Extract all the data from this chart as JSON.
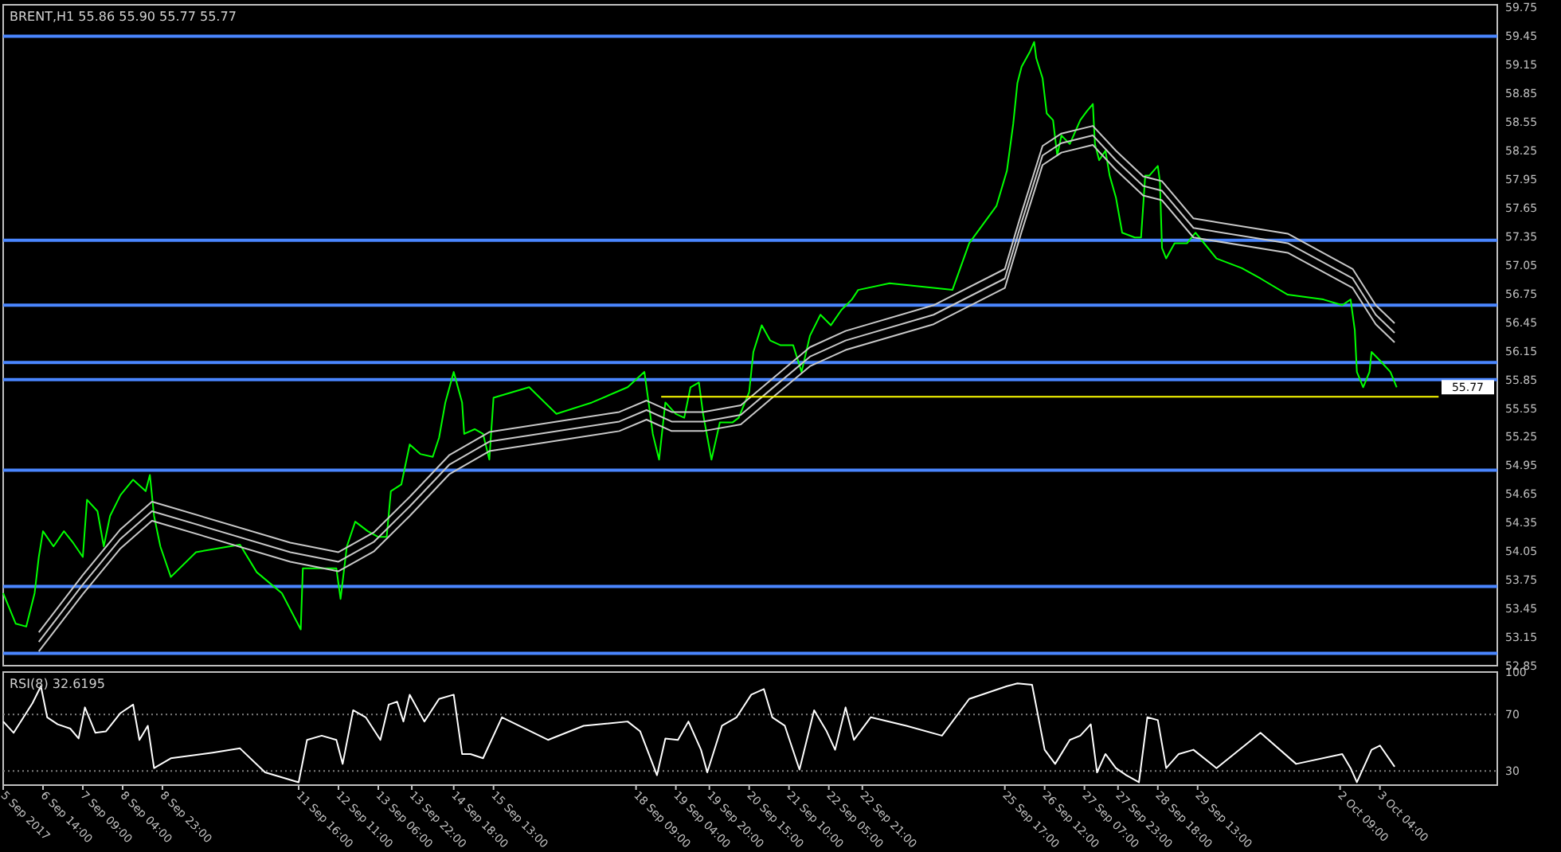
{
  "chart_data": [
    {
      "type": "line",
      "title": "BRENT,H1 55.86 55.90 55.77 55.77",
      "xlim": [
        "2017-09-05T19:00",
        "2017-10-05T12:00"
      ],
      "ylim": [
        52.85,
        59.78
      ],
      "yticks": [
        52.85,
        53.15,
        53.45,
        53.75,
        54.05,
        54.35,
        54.65,
        54.95,
        55.25,
        55.55,
        55.85,
        56.15,
        56.45,
        56.75,
        57.05,
        57.35,
        57.65,
        57.95,
        58.25,
        58.55,
        58.85,
        59.15,
        59.45,
        59.75
      ],
      "tick_labels": "y",
      "grid": false,
      "ref_lines": [
        {
          "axis": "y",
          "value": 59.45,
          "color": "#4a86ff"
        },
        {
          "axis": "y",
          "value": 57.31,
          "color": "#4a86ff"
        },
        {
          "axis": "y",
          "value": 56.63,
          "color": "#4a86ff"
        },
        {
          "axis": "y",
          "value": 56.03,
          "color": "#4a86ff"
        },
        {
          "axis": "y",
          "value": 55.85,
          "color": "#4a86ff"
        },
        {
          "axis": "y",
          "value": 54.9,
          "color": "#4a86ff"
        },
        {
          "axis": "y",
          "value": 53.68,
          "color": "#4a86ff"
        },
        {
          "axis": "y",
          "value": 52.98,
          "color": "#4a86ff"
        }
      ],
      "annotations": [
        {
          "text": "55.77",
          "y": 55.77
        }
      ],
      "series": [
        {
          "color": "#00ff00",
          "x": [
            "2017-09-05T19:00",
            "2017-09-06T01:00",
            "2017-09-06T06:00",
            "2017-09-06T10:00",
            "2017-09-06T12:00",
            "2017-09-06T14:00",
            "2017-09-06T19:00",
            "2017-09-07T00:00",
            "2017-09-07T04:00",
            "2017-09-07T09:00",
            "2017-09-07T11:00",
            "2017-09-07T16:00",
            "2017-09-07T19:00",
            "2017-09-07T22:00",
            "2017-09-08T03:00",
            "2017-09-08T09:00",
            "2017-09-08T15:00",
            "2017-09-08T17:00",
            "2017-09-08T19:00",
            "2017-09-08T22:00",
            "2017-09-09T03:00",
            "2017-09-09T15:00",
            "2017-09-10T12:00",
            "2017-09-10T20:00",
            "2017-09-11T08:00",
            "2017-09-11T17:00",
            "2017-09-11T18:00",
            "2017-09-11T23:00",
            "2017-09-12T05:00",
            "2017-09-12T10:00",
            "2017-09-12T12:00",
            "2017-09-12T15:00",
            "2017-09-12T19:00",
            "2017-09-13T01:00",
            "2017-09-13T06:00",
            "2017-09-13T10:00",
            "2017-09-13T12:00",
            "2017-09-13T17:00",
            "2017-09-13T19:00",
            "2017-09-13T21:00",
            "2017-09-14T02:00",
            "2017-09-14T08:00",
            "2017-09-14T11:00",
            "2017-09-14T14:00",
            "2017-09-14T18:00",
            "2017-09-14T22:00",
            "2017-09-14T23:00",
            "2017-09-15T04:00",
            "2017-09-15T08:00",
            "2017-09-15T11:00",
            "2017-09-15T13:00",
            "2017-09-16T06:00",
            "2017-09-16T19:00",
            "2017-09-17T12:00",
            "2017-09-18T05:00",
            "2017-09-18T13:00",
            "2017-09-18T15:00",
            "2017-09-18T17:00",
            "2017-09-18T20:00",
            "2017-09-18T23:00",
            "2017-09-19T04:00",
            "2017-09-19T08:00",
            "2017-09-19T11:00",
            "2017-09-19T15:00",
            "2017-09-19T17:00",
            "2017-09-19T21:00",
            "2017-09-20T01:00",
            "2017-09-20T07:00",
            "2017-09-20T10:00",
            "2017-09-20T15:00",
            "2017-09-20T17:00",
            "2017-09-20T21:00",
            "2017-09-21T01:00",
            "2017-09-21T06:00",
            "2017-09-21T12:00",
            "2017-09-21T16:00",
            "2017-09-21T20:00",
            "2017-09-22T01:00",
            "2017-09-22T06:00",
            "2017-09-22T11:00",
            "2017-09-22T16:00",
            "2017-09-22T19:00",
            "2017-09-23T10:00",
            "2017-09-24T16:00",
            "2017-09-25T00:00",
            "2017-09-25T13:00",
            "2017-09-25T18:00",
            "2017-09-25T21:00",
            "2017-09-25T23:00",
            "2017-09-26T01:00",
            "2017-09-26T05:00",
            "2017-09-26T07:00",
            "2017-09-26T08:00",
            "2017-09-26T11:00",
            "2017-09-26T13:00",
            "2017-09-26T16:00",
            "2017-09-26T18:00",
            "2017-09-26T20:00",
            "2017-09-27T00:00",
            "2017-09-27T05:00",
            "2017-09-27T08:00",
            "2017-09-27T11:00",
            "2017-09-27T12:00",
            "2017-09-27T14:00",
            "2017-09-27T17:00",
            "2017-09-27T19:00",
            "2017-09-27T22:00",
            "2017-09-28T01:00",
            "2017-09-28T07:00",
            "2017-09-28T10:00",
            "2017-09-28T12:00",
            "2017-09-28T14:00",
            "2017-09-28T18:00",
            "2017-09-28T19:00",
            "2017-09-28T20:00",
            "2017-09-28T22:00",
            "2017-09-29T02:00",
            "2017-09-29T08:00",
            "2017-09-29T12:00",
            "2017-09-29T22:00",
            "2017-09-30T10:00",
            "2017-09-30T19:00",
            "2017-10-01T08:00",
            "2017-10-02T01:00",
            "2017-10-02T10:00",
            "2017-10-02T14:00",
            "2017-10-02T16:00",
            "2017-10-02T17:00",
            "2017-10-02T20:00",
            "2017-10-02T23:00",
            "2017-10-03T00:00",
            "2017-10-03T04:00",
            "2017-10-03T09:00",
            "2017-10-03T12:00"
          ],
          "values": [
            53.61,
            53.29,
            53.26,
            53.61,
            53.99,
            54.26,
            54.1,
            54.26,
            54.15,
            53.99,
            54.59,
            54.47,
            54.1,
            54.42,
            54.64,
            54.8,
            54.68,
            54.85,
            54.42,
            54.1,
            53.78,
            54.04,
            54.12,
            53.83,
            53.61,
            53.23,
            53.87,
            53.87,
            53.87,
            53.87,
            53.55,
            54.1,
            54.36,
            54.26,
            54.2,
            54.2,
            54.68,
            54.75,
            54.96,
            55.17,
            55.07,
            55.04,
            55.24,
            55.61,
            55.93,
            55.61,
            55.28,
            55.33,
            55.28,
            55.01,
            55.66,
            55.77,
            55.49,
            55.61,
            55.77,
            55.93,
            55.61,
            55.28,
            55.01,
            55.61,
            55.49,
            55.45,
            55.77,
            55.82,
            55.49,
            55.01,
            55.4,
            55.4,
            55.45,
            55.72,
            56.14,
            56.42,
            56.26,
            56.21,
            56.21,
            55.93,
            56.31,
            56.53,
            56.42,
            56.58,
            56.69,
            56.79,
            56.86,
            56.79,
            57.28,
            57.67,
            58.04,
            58.53,
            58.96,
            59.13,
            59.29,
            59.39,
            59.22,
            59.01,
            58.64,
            58.57,
            58.2,
            58.41,
            58.32,
            58.57,
            58.66,
            58.74,
            58.32,
            58.15,
            58.25,
            57.99,
            57.76,
            57.39,
            57.34,
            57.34,
            57.99,
            57.99,
            58.09,
            57.93,
            57.23,
            57.12,
            57.28,
            57.28,
            57.39,
            57.12,
            57.02,
            56.91,
            56.74,
            56.69,
            56.63,
            56.69,
            56.37,
            55.93,
            55.77,
            55.93,
            56.14,
            56.05,
            55.93,
            55.77
          ]
        },
        {
          "color": "#c8c8c8",
          "x": [
            "2017-09-06T12:00",
            "2017-09-07T09:00",
            "2017-09-08T03:00",
            "2017-09-08T18:00",
            "2017-09-11T12:00",
            "2017-09-12T11:00",
            "2017-09-13T04:00",
            "2017-09-13T21:00",
            "2017-09-14T16:00",
            "2017-09-15T11:00",
            "2017-09-18T01:00",
            "2017-09-18T14:00",
            "2017-09-19T02:00",
            "2017-09-19T17:00",
            "2017-09-20T11:00",
            "2017-09-21T01:00",
            "2017-09-21T20:00",
            "2017-09-22T13:00",
            "2017-09-24T07:00",
            "2017-09-25T17:00",
            "2017-09-26T01:00",
            "2017-09-26T11:00",
            "2017-09-26T20:00",
            "2017-09-27T11:00",
            "2017-09-27T22:00",
            "2017-09-28T11:00",
            "2017-09-28T20:00",
            "2017-09-29T11:00",
            "2017-10-01T08:00",
            "2017-10-02T15:00",
            "2017-10-03T02:00",
            "2017-10-03T11:00"
          ],
          "values": [
            53.2,
            53.8,
            54.28,
            54.57,
            54.14,
            54.04,
            54.25,
            54.62,
            55.06,
            55.3,
            55.51,
            55.63,
            55.51,
            55.51,
            55.58,
            55.84,
            56.19,
            56.36,
            56.63,
            57.01,
            57.6,
            58.3,
            58.43,
            58.51,
            58.25,
            57.98,
            57.93,
            57.54,
            57.38,
            57.01,
            56.63,
            56.44
          ]
        },
        {
          "color": "#c8c8c8",
          "x": [
            "2017-09-06T12:00",
            "2017-09-07T09:00",
            "2017-09-08T03:00",
            "2017-09-08T18:00",
            "2017-09-11T12:00",
            "2017-09-12T11:00",
            "2017-09-13T04:00",
            "2017-09-13T21:00",
            "2017-09-14T16:00",
            "2017-09-15T11:00",
            "2017-09-18T01:00",
            "2017-09-18T14:00",
            "2017-09-19T02:00",
            "2017-09-19T17:00",
            "2017-09-20T11:00",
            "2017-09-21T01:00",
            "2017-09-21T20:00",
            "2017-09-22T13:00",
            "2017-09-24T07:00",
            "2017-09-25T17:00",
            "2017-09-26T01:00",
            "2017-09-26T11:00",
            "2017-09-26T20:00",
            "2017-09-27T11:00",
            "2017-09-27T22:00",
            "2017-09-28T11:00",
            "2017-09-28T20:00",
            "2017-09-29T11:00",
            "2017-10-01T08:00",
            "2017-10-02T15:00",
            "2017-10-03T02:00",
            "2017-10-03T11:00"
          ],
          "values": [
            53.1,
            53.7,
            54.18,
            54.47,
            54.04,
            53.94,
            54.15,
            54.52,
            54.96,
            55.2,
            55.41,
            55.53,
            55.41,
            55.41,
            55.48,
            55.74,
            56.09,
            56.26,
            56.53,
            56.91,
            57.5,
            58.2,
            58.33,
            58.41,
            58.15,
            57.88,
            57.83,
            57.44,
            57.28,
            56.91,
            56.53,
            56.34
          ]
        },
        {
          "color": "#c8c8c8",
          "x": [
            "2017-09-06T12:00",
            "2017-09-07T09:00",
            "2017-09-08T03:00",
            "2017-09-08T18:00",
            "2017-09-11T12:00",
            "2017-09-12T11:00",
            "2017-09-13T04:00",
            "2017-09-13T21:00",
            "2017-09-14T16:00",
            "2017-09-15T11:00",
            "2017-09-18T01:00",
            "2017-09-18T14:00",
            "2017-09-19T02:00",
            "2017-09-19T17:00",
            "2017-09-20T11:00",
            "2017-09-21T01:00",
            "2017-09-21T20:00",
            "2017-09-22T13:00",
            "2017-09-24T07:00",
            "2017-09-25T17:00",
            "2017-09-26T01:00",
            "2017-09-26T11:00",
            "2017-09-26T20:00",
            "2017-09-27T11:00",
            "2017-09-27T22:00",
            "2017-09-28T11:00",
            "2017-09-28T20:00",
            "2017-09-29T11:00",
            "2017-10-01T08:00",
            "2017-10-02T15:00",
            "2017-10-03T02:00",
            "2017-10-03T11:00"
          ],
          "values": [
            53.0,
            53.6,
            54.08,
            54.37,
            53.94,
            53.84,
            54.05,
            54.42,
            54.86,
            55.1,
            55.31,
            55.43,
            55.31,
            55.31,
            55.38,
            55.64,
            55.99,
            56.16,
            56.43,
            56.81,
            57.4,
            58.1,
            58.23,
            58.31,
            58.05,
            57.78,
            57.73,
            57.34,
            57.18,
            56.81,
            56.43,
            56.24
          ]
        },
        {
          "color": "#ffff00",
          "x": [
            "2017-09-18T21:00",
            "2017-10-04T08:00"
          ],
          "values": [
            55.67,
            55.67
          ]
        }
      ]
    },
    {
      "type": "line",
      "title": "RSI(8) 32.6195",
      "xlim": [
        "2017-09-05T19:00",
        "2017-10-05T12:00"
      ],
      "xticks": [
        {
          "value": "2017-09-05T19:00",
          "label": "5 Sep 2017"
        },
        {
          "value": "2017-09-06T14:00",
          "label": "6 Sep 14:00"
        },
        {
          "value": "2017-09-07T09:00",
          "label": "7 Sep 09:00"
        },
        {
          "value": "2017-09-08T04:00",
          "label": "8 Sep 04:00"
        },
        {
          "value": "2017-09-08T23:00",
          "label": "8 Sep 23:00"
        },
        {
          "value": "2017-09-11T16:00",
          "label": "11 Sep 16:00"
        },
        {
          "value": "2017-09-12T11:00",
          "label": "12 Sep 11:00"
        },
        {
          "value": "2017-09-13T06:00",
          "label": "13 Sep 06:00"
        },
        {
          "value": "2017-09-13T22:00",
          "label": "13 Sep 22:00"
        },
        {
          "value": "2017-09-14T18:00",
          "label": "14 Sep 18:00"
        },
        {
          "value": "2017-09-15T13:00",
          "label": "15 Sep 13:00"
        },
        {
          "value": "2017-09-18T09:00",
          "label": "18 Sep 09:00"
        },
        {
          "value": "2017-09-19T04:00",
          "label": "19 Sep 04:00"
        },
        {
          "value": "2017-09-19T20:00",
          "label": "19 Sep 20:00"
        },
        {
          "value": "2017-09-20T15:00",
          "label": "20 Sep 15:00"
        },
        {
          "value": "2017-09-21T10:00",
          "label": "21 Sep 10:00"
        },
        {
          "value": "2017-09-22T05:00",
          "label": "22 Sep 05:00"
        },
        {
          "value": "2017-09-22T21:00",
          "label": "22 Sep 21:00"
        },
        {
          "value": "2017-09-25T17:00",
          "label": "25 Sep 17:00"
        },
        {
          "value": "2017-09-26T12:00",
          "label": "26 Sep 12:00"
        },
        {
          "value": "2017-09-27T07:00",
          "label": "27 Sep 07:00"
        },
        {
          "value": "2017-09-27T23:00",
          "label": "27 Sep 23:00"
        },
        {
          "value": "2017-09-28T18:00",
          "label": "28 Sep 18:00"
        },
        {
          "value": "2017-09-29T13:00",
          "label": "29 Sep 13:00"
        },
        {
          "value": "2017-10-02T09:00",
          "label": "2 Oct 09:00"
        },
        {
          "value": "2017-10-03T04:00",
          "label": "3 Oct 04:00"
        }
      ],
      "ylim": [
        20,
        100
      ],
      "yticks": [
        30,
        70,
        100
      ],
      "ref_lines": [
        {
          "axis": "y",
          "value": 70,
          "color": "#808080",
          "line_style": "dotted"
        },
        {
          "axis": "y",
          "value": 30,
          "color": "#808080",
          "line_style": "dotted"
        }
      ],
      "series": [
        {
          "color": "#ffffff",
          "x": [
            "2017-09-05T19:00",
            "2017-09-06T00:00",
            "2017-09-06T09:00",
            "2017-09-06T13:00",
            "2017-09-06T16:00",
            "2017-09-06T21:00",
            "2017-09-07T03:00",
            "2017-09-07T07:00",
            "2017-09-07T10:00",
            "2017-09-07T15:00",
            "2017-09-07T20:00",
            "2017-09-08T03:00",
            "2017-09-08T09:00",
            "2017-09-08T12:00",
            "2017-09-08T16:00",
            "2017-09-08T19:00",
            "2017-09-09T03:00",
            "2017-09-09T23:00",
            "2017-09-10T12:00",
            "2017-09-11T00:00",
            "2017-09-11T16:00",
            "2017-09-11T20:00",
            "2017-09-12T03:00",
            "2017-09-12T10:00",
            "2017-09-12T13:00",
            "2017-09-12T18:00",
            "2017-09-13T00:00",
            "2017-09-13T07:00",
            "2017-09-13T11:00",
            "2017-09-13T15:00",
            "2017-09-13T18:00",
            "2017-09-13T21:00",
            "2017-09-14T04:00",
            "2017-09-14T11:00",
            "2017-09-14T18:00",
            "2017-09-14T22:00",
            "2017-09-15T02:00",
            "2017-09-15T08:00",
            "2017-09-15T17:00",
            "2017-09-16T15:00",
            "2017-09-17T08:00",
            "2017-09-18T05:00",
            "2017-09-18T11:00",
            "2017-09-18T19:00",
            "2017-09-18T23:00",
            "2017-09-19T05:00",
            "2017-09-19T10:00",
            "2017-09-19T16:00",
            "2017-09-19T19:00",
            "2017-09-20T02:00",
            "2017-09-20T09:00",
            "2017-09-20T16:00",
            "2017-09-20T22:00",
            "2017-09-21T02:00",
            "2017-09-21T08:00",
            "2017-09-21T15:00",
            "2017-09-21T22:00",
            "2017-09-22T04:00",
            "2017-09-22T08:00",
            "2017-09-22T13:00",
            "2017-09-22T17:00",
            "2017-09-23T01:00",
            "2017-09-23T18:00",
            "2017-09-24T11:00",
            "2017-09-25T00:00",
            "2017-09-25T18:00",
            "2017-09-25T23:00",
            "2017-09-26T06:00",
            "2017-09-26T12:00",
            "2017-09-26T17:00",
            "2017-09-27T00:00",
            "2017-09-27T05:00",
            "2017-09-27T10:00",
            "2017-09-27T13:00",
            "2017-09-27T17:00",
            "2017-09-27T22:00",
            "2017-09-28T03:00",
            "2017-09-28T09:00",
            "2017-09-28T13:00",
            "2017-09-28T18:00",
            "2017-09-28T22:00",
            "2017-09-29T04:00",
            "2017-09-29T11:00",
            "2017-09-29T22:00",
            "2017-09-30T19:00",
            "2017-10-01T12:00",
            "2017-10-02T10:00",
            "2017-10-02T14:00",
            "2017-10-02T17:00",
            "2017-10-03T00:00",
            "2017-10-03T04:00",
            "2017-10-03T11:00"
          ],
          "values": [
            65,
            57,
            78,
            90,
            68,
            63,
            60,
            53,
            75,
            57,
            58,
            71,
            77,
            52,
            62,
            32,
            39,
            43,
            46,
            29,
            22,
            52,
            55,
            52,
            35,
            73,
            68,
            52,
            77,
            79,
            65,
            84,
            65,
            81,
            84,
            42,
            42,
            39,
            68,
            52,
            62,
            65,
            58,
            27,
            53,
            52,
            65,
            45,
            29,
            62,
            68,
            84,
            88,
            68,
            62,
            31,
            73,
            58,
            45,
            75,
            52,
            68,
            62,
            55,
            81,
            90,
            92,
            91,
            45,
            35,
            52,
            55,
            63,
            29,
            42,
            32,
            27,
            22,
            68,
            66,
            32,
            42,
            45,
            32,
            57,
            35,
            42,
            32,
            22,
            45,
            48,
            33
          ]
        }
      ]
    }
  ]
}
